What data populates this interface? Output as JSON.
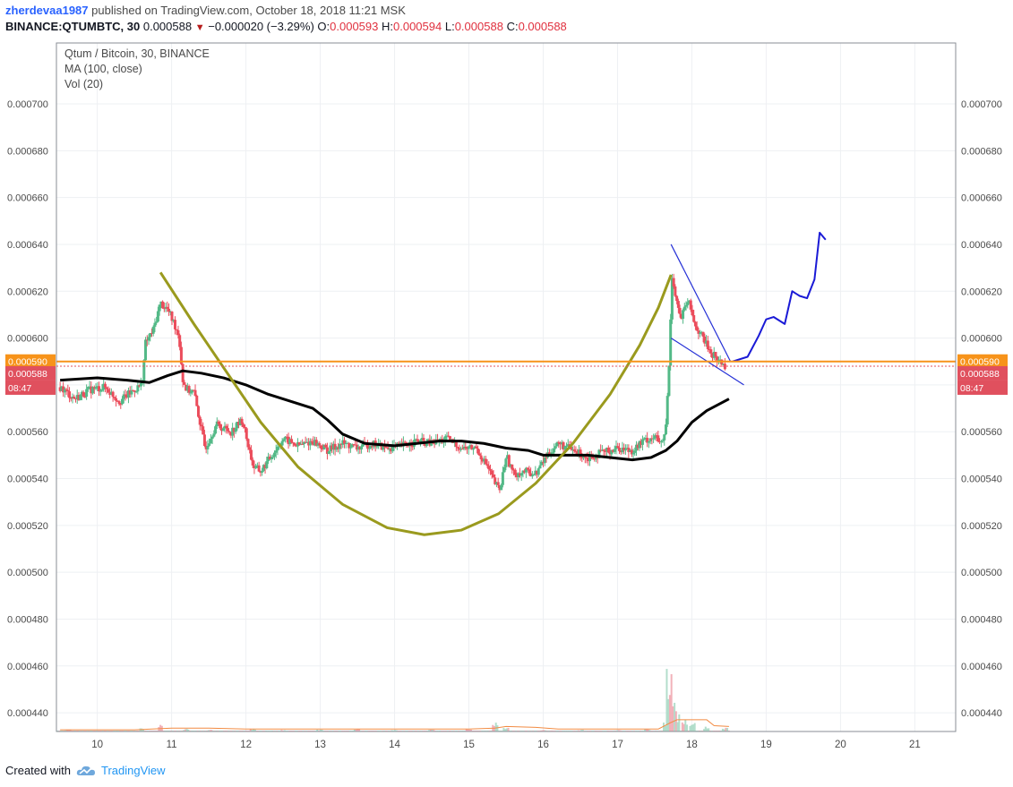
{
  "header": {
    "author": "zherdevaa1987",
    "published_text": "published on TradingView.com, October 18, 2018 11:21 MSK",
    "symbol": "BINANCE:QTUMBTC, 30",
    "last": "0.000588",
    "change": "−0.000020 (−3.29%)",
    "o_label": "O:",
    "o_value": "0.000593",
    "h_label": "H:",
    "h_value": "0.000594",
    "l_label": "L:",
    "l_value": "0.000588",
    "c_label": "C:",
    "c_value": "0.000588"
  },
  "footer": {
    "created_with": "Created with",
    "brand": "TradingView"
  },
  "chart_data": {
    "type": "line",
    "title": "Qtum / Bitcoin, 30, BINANCE",
    "indicators": [
      "MA (100, close)",
      "Vol (20)"
    ],
    "x_ticks": [
      "10",
      "11",
      "12",
      "13",
      "14",
      "15",
      "16",
      "17",
      "18",
      "19",
      "20",
      "21"
    ],
    "x_range_days": [
      9.45,
      21.55
    ],
    "y_ticks": [
      "0.000700",
      "0.000680",
      "0.000660",
      "0.000640",
      "0.000620",
      "0.000600",
      "0.000580",
      "0.000560",
      "0.000540",
      "0.000520",
      "0.000500",
      "0.000480",
      "0.000460",
      "0.000440"
    ],
    "ylim": [
      0.000432,
      0.000726
    ],
    "price_labels": [
      {
        "value": 0.00059,
        "text": "0.000590",
        "color": "#f7931a"
      },
      {
        "value": 0.000588,
        "text": "0.000588",
        "color": "#e0505e"
      }
    ],
    "countdown": "08:47",
    "close_series": {
      "x": [
        9.5,
        9.7,
        9.9,
        10.1,
        10.3,
        10.5,
        10.6,
        10.65,
        10.75,
        10.85,
        10.95,
        11.05,
        11.1,
        11.15,
        11.2,
        11.3,
        11.45,
        11.6,
        11.8,
        11.95,
        12.1,
        12.2,
        12.35,
        12.5,
        12.7,
        12.9,
        13.1,
        13.3,
        13.5,
        13.7,
        13.9,
        14.1,
        14.3,
        14.5,
        14.7,
        14.9,
        15.1,
        15.25,
        15.35,
        15.42,
        15.5,
        15.6,
        15.75,
        15.9,
        16.05,
        16.2,
        16.4,
        16.6,
        16.8,
        17.0,
        17.2,
        17.35,
        17.5,
        17.6,
        17.65,
        17.7,
        17.73,
        17.78,
        17.85,
        17.95,
        18.05,
        18.15,
        18.25,
        18.35,
        18.45
      ],
      "y": [
        0.000579,
        0.000574,
        0.000578,
        0.000579,
        0.000573,
        0.000578,
        0.00058,
        0.000598,
        0.000603,
        0.000615,
        0.000612,
        0.000605,
        0.000601,
        0.000582,
        0.000578,
        0.000577,
        0.000553,
        0.000563,
        0.00056,
        0.000565,
        0.000545,
        0.000543,
        0.00055,
        0.000557,
        0.000554,
        0.000556,
        0.000552,
        0.000555,
        0.000553,
        0.000555,
        0.000553,
        0.000554,
        0.000556,
        0.000555,
        0.000557,
        0.000553,
        0.000553,
        0.000545,
        0.000538,
        0.000535,
        0.00055,
        0.000542,
        0.000543,
        0.000542,
        0.00055,
        0.000555,
        0.000552,
        0.000549,
        0.000551,
        0.000553,
        0.000552,
        0.000556,
        0.000558,
        0.000554,
        0.000562,
        0.000592,
        0.000628,
        0.000618,
        0.000608,
        0.000616,
        0.000605,
        0.0006,
        0.000594,
        0.000591,
        0.000588
      ]
    },
    "ma_series": {
      "name": "MA (100, close)",
      "x": [
        9.5,
        10.0,
        10.4,
        10.7,
        10.95,
        11.15,
        11.4,
        11.7,
        12.0,
        12.3,
        12.6,
        12.9,
        13.1,
        13.3,
        13.6,
        14.0,
        14.3,
        14.6,
        14.9,
        15.2,
        15.5,
        15.8,
        16.0,
        16.3,
        16.6,
        16.9,
        17.2,
        17.45,
        17.65,
        17.8,
        18.0,
        18.2,
        18.5
      ],
      "y": [
        0.000582,
        0.000583,
        0.000582,
        0.000581,
        0.000584,
        0.000586,
        0.000585,
        0.000583,
        0.00058,
        0.000576,
        0.000573,
        0.00057,
        0.000565,
        0.000559,
        0.000555,
        0.000554,
        0.000555,
        0.000556,
        0.000556,
        0.000555,
        0.000553,
        0.000552,
        0.00055,
        0.00055,
        0.00055,
        0.000549,
        0.000548,
        0.000549,
        0.000552,
        0.000556,
        0.000564,
        0.000569,
        0.000574
      ]
    },
    "cup_curve": {
      "x": [
        10.85,
        11.3,
        11.75,
        12.2,
        12.7,
        13.3,
        13.9,
        14.4,
        14.9,
        15.4,
        15.9,
        16.4,
        16.9,
        17.3,
        17.55,
        17.72
      ],
      "y": [
        0.000628,
        0.000606,
        0.000585,
        0.000564,
        0.000545,
        0.000529,
        0.000519,
        0.000516,
        0.000518,
        0.000525,
        0.000538,
        0.000555,
        0.000576,
        0.000597,
        0.000613,
        0.000627
      ]
    },
    "channel_lines": [
      {
        "x": [
          17.72,
          18.52
        ],
        "y": [
          0.00064,
          0.00059
        ]
      },
      {
        "x": [
          17.72,
          18.7
        ],
        "y": [
          0.0006,
          0.00058
        ]
      }
    ],
    "projection": {
      "x": [
        18.55,
        18.75,
        18.9,
        19.0,
        19.1,
        19.25,
        19.35,
        19.45,
        19.55,
        19.65,
        19.72,
        19.8
      ],
      "y": [
        0.00059,
        0.000592,
        0.000601,
        0.000608,
        0.000609,
        0.000606,
        0.00062,
        0.000618,
        0.000617,
        0.000625,
        0.000645,
        0.000642
      ]
    },
    "volume": {
      "x": [
        9.6,
        10.2,
        10.6,
        10.85,
        11.2,
        11.5,
        12.1,
        12.5,
        13.0,
        13.5,
        14.0,
        14.5,
        15.0,
        15.35,
        15.5,
        16.0,
        16.5,
        17.0,
        17.4,
        17.65,
        17.7,
        17.75,
        17.8,
        17.9,
        18.0,
        18.2,
        18.45
      ],
      "y": [
        2,
        1,
        4,
        9,
        3,
        2,
        3,
        2,
        2,
        3,
        2,
        2,
        3,
        12,
        4,
        2,
        2,
        2,
        3,
        12,
        75,
        32,
        20,
        14,
        10,
        6,
        4
      ]
    },
    "volume_ma": {
      "x": [
        9.5,
        10.5,
        11.0,
        11.5,
        12.0,
        13.0,
        14.0,
        15.0,
        15.35,
        15.5,
        15.9,
        16.2,
        17.0,
        17.55,
        17.7,
        17.8,
        18.2,
        18.3,
        18.5
      ],
      "y": [
        2,
        2,
        4,
        4,
        3,
        3,
        3,
        3,
        4,
        6,
        5,
        3,
        3,
        3,
        10,
        14,
        14,
        7,
        6
      ]
    }
  }
}
